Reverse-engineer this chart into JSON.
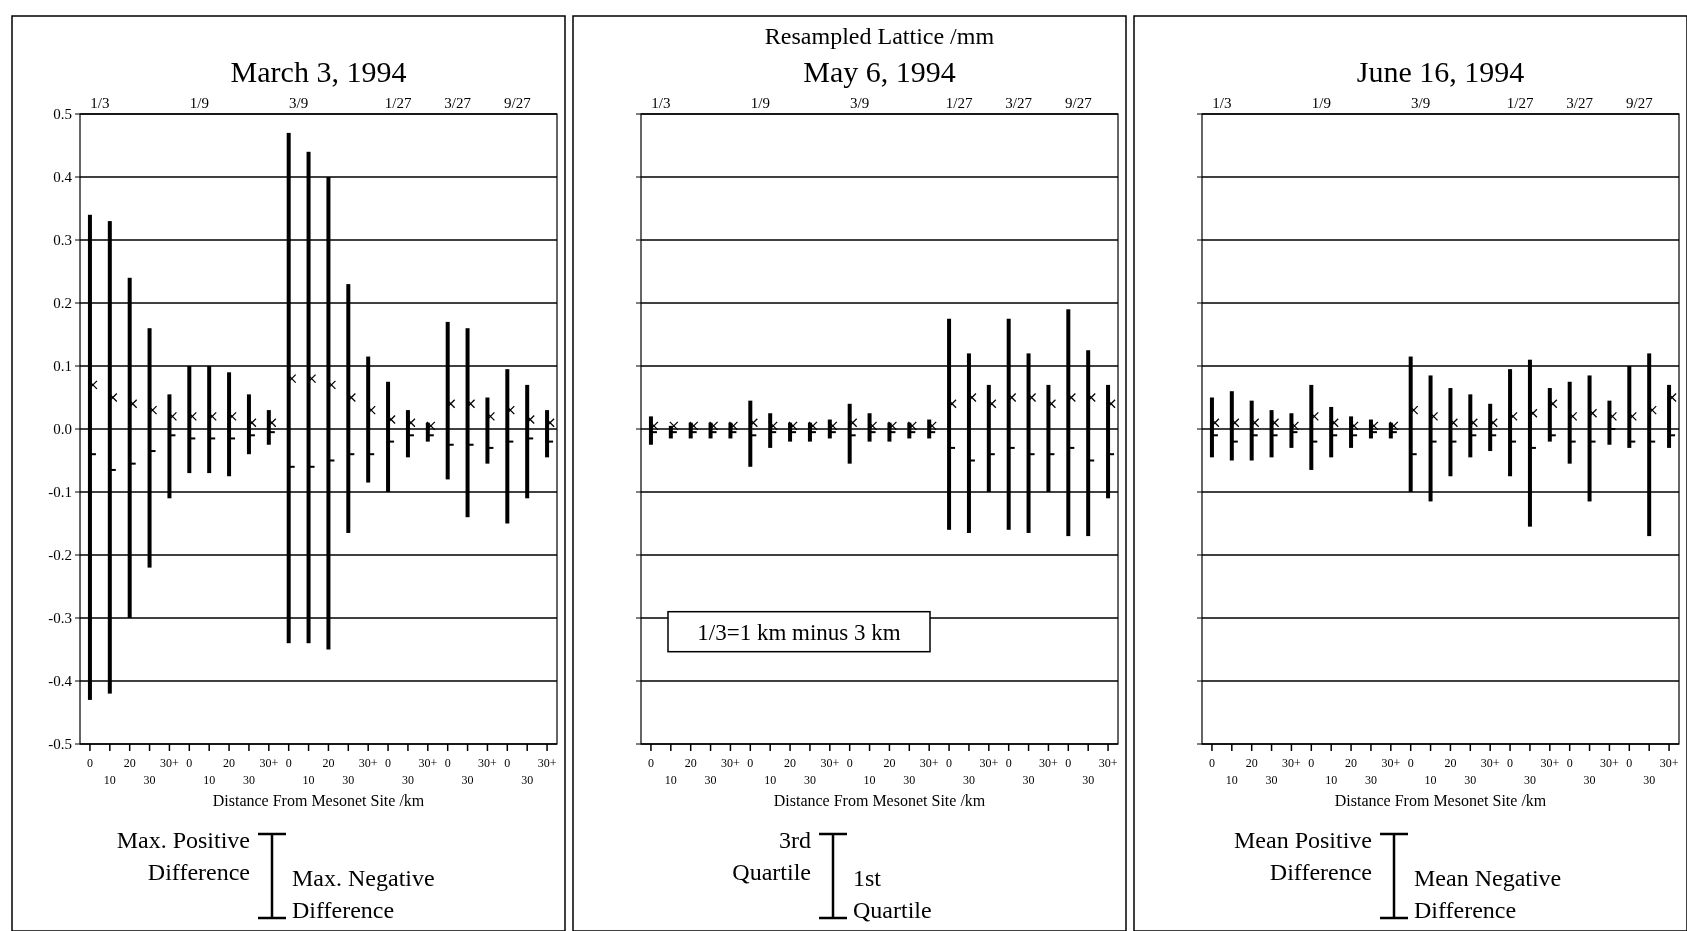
{
  "chart_data": [
    {
      "type": "bar",
      "title": "March 3, 1994",
      "xlabel": "Distance From Mesonet Site /km",
      "categories": [
        "0",
        "10",
        "20",
        "30",
        "30+",
        "0",
        "10",
        "20",
        "30",
        "30+",
        "0",
        "10",
        "20",
        "30",
        "30+",
        "0",
        "30",
        "30+",
        "0",
        "30",
        "30+",
        "0",
        "30",
        "30+"
      ],
      "ylim": [
        -0.5,
        0.5
      ],
      "yticks": [
        -0.5,
        -0.4,
        -0.3,
        -0.2,
        -0.1,
        {
          "value": 0,
          "label": "0.0"
        },
        0.1,
        0.2,
        0.3,
        0.4,
        0.5
      ],
      "grid": "y",
      "annotations": [
        "1/3",
        "1/9",
        "3/9",
        "1/27",
        "3/27",
        "9/27",
        "Max. Positive Difference",
        "Max. Negative Difference"
      ],
      "series": [
        {
          "color": "#000000",
          "base": [
            -0.43,
            -0.42,
            -0.3,
            -0.22,
            -0.11,
            -0.07,
            -0.07,
            -0.075,
            -0.04,
            -0.025,
            -0.34,
            -0.34,
            -0.35,
            -0.165,
            -0.085,
            -0.1,
            -0.045,
            -0.02,
            -0.08,
            -0.14,
            -0.055,
            -0.15,
            -0.11,
            -0.045
          ],
          "values": [
            0.77,
            0.75,
            0.54,
            0.38,
            0.165,
            0.17,
            0.17,
            0.165,
            0.095,
            0.055,
            0.81,
            0.78,
            0.75,
            0.395,
            0.2,
            0.175,
            0.075,
            0.03,
            0.25,
            0.3,
            0.105,
            0.245,
            0.18,
            0.075
          ]
        },
        {
          "type": "scatter",
          "marker": "cross",
          "color": "#000000",
          "values": [
            0.07,
            0.05,
            0.04,
            0.03,
            0.02,
            0.02,
            0.02,
            0.02,
            0.01,
            0.01,
            0.08,
            0.08,
            0.07,
            0.05,
            0.03,
            0.015,
            0.01,
            0.005,
            0.04,
            0.04,
            0.02,
            0.03,
            0.015,
            0.01
          ]
        },
        {
          "type": "scatter",
          "marker": "square",
          "color": "#000000",
          "values": [
            -0.04,
            -0.065,
            -0.055,
            -0.035,
            -0.01,
            -0.015,
            -0.015,
            -0.015,
            -0.01,
            -0.005,
            -0.06,
            -0.06,
            -0.05,
            -0.04,
            -0.04,
            -0.02,
            -0.01,
            -0.01,
            -0.025,
            -0.025,
            -0.03,
            -0.02,
            -0.015,
            -0.02
          ]
        }
      ]
    },
    {
      "type": "bar",
      "title": "Resampled Lattice /mm",
      "subtitle": "May 6, 1994",
      "xlabel": "Distance From Mesonet Site /km",
      "categories": [
        "0",
        "10",
        "20",
        "30",
        "30+",
        "0",
        "10",
        "20",
        "30",
        "30+",
        "0",
        "10",
        "20",
        "30",
        "30+",
        "0",
        "30",
        "30+",
        "0",
        "30",
        "30+",
        "0",
        "30",
        "30+"
      ],
      "ylim": [
        -0.5,
        0.5
      ],
      "yticks": [
        -0.5,
        -0.4,
        -0.3,
        -0.2,
        -0.1,
        0,
        0.1,
        0.2,
        0.3,
        0.4,
        0.5
      ],
      "tick_labels": "x",
      "grid": "y",
      "annotations": [
        "1/3",
        "1/9",
        "3/9",
        "1/27",
        "3/27",
        "9/27",
        "1/3=1 km minus 3 km",
        "3rd Quartile",
        "1st Quartile"
      ],
      "series": [
        {
          "color": "#000000",
          "base": [
            -0.025,
            -0.015,
            -0.015,
            -0.015,
            -0.015,
            -0.06,
            -0.03,
            -0.02,
            -0.02,
            -0.015,
            -0.055,
            -0.02,
            -0.02,
            -0.015,
            -0.015,
            -0.16,
            -0.165,
            -0.1,
            -0.16,
            -0.165,
            -0.1,
            -0.17,
            -0.17,
            -0.11
          ],
          "values": [
            0.045,
            0.02,
            0.025,
            0.025,
            0.025,
            0.105,
            0.055,
            0.03,
            0.03,
            0.03,
            0.095,
            0.045,
            0.03,
            0.025,
            0.03,
            0.335,
            0.285,
            0.17,
            0.335,
            0.285,
            0.17,
            0.36,
            0.295,
            0.18
          ]
        },
        {
          "type": "scatter",
          "marker": "cross",
          "color": "#000000",
          "values": [
            0.005,
            0.005,
            0.005,
            0.005,
            0.005,
            0.01,
            0.005,
            0.005,
            0.005,
            0.005,
            0.01,
            0.005,
            0.005,
            0.005,
            0.005,
            0.04,
            0.05,
            0.04,
            0.05,
            0.05,
            0.04,
            0.05,
            0.05,
            0.04
          ]
        },
        {
          "type": "scatter",
          "marker": "square",
          "color": "#000000",
          "values": [
            -0.005,
            -0.005,
            -0.005,
            -0.005,
            -0.005,
            -0.01,
            -0.005,
            -0.005,
            -0.005,
            -0.005,
            -0.01,
            -0.005,
            -0.005,
            -0.005,
            -0.005,
            -0.03,
            -0.05,
            -0.04,
            -0.03,
            -0.04,
            -0.04,
            -0.03,
            -0.05,
            -0.04
          ]
        }
      ]
    },
    {
      "type": "bar",
      "title": "June 16, 1994",
      "xlabel": "Distance From Mesonet Site /km",
      "categories": [
        "0",
        "10",
        "20",
        "30",
        "30+",
        "0",
        "10",
        "20",
        "30",
        "30+",
        "0",
        "10",
        "20",
        "30",
        "30+",
        "0",
        "30",
        "30+",
        "0",
        "30",
        "30+",
        "0",
        "30",
        "30+"
      ],
      "ylim": [
        -0.5,
        0.5
      ],
      "yticks": [
        -0.5,
        -0.4,
        -0.3,
        -0.2,
        -0.1,
        0,
        0.1,
        0.2,
        0.3,
        0.4,
        0.5
      ],
      "tick_labels": "x",
      "grid": "y",
      "annotations": [
        "1/3",
        "1/9",
        "3/9",
        "1/27",
        "3/27",
        "9/27",
        "Mean Positive Difference",
        "Mean Negative Difference"
      ],
      "series": [
        {
          "color": "#000000",
          "base": [
            -0.045,
            -0.05,
            -0.05,
            -0.045,
            -0.03,
            -0.065,
            -0.045,
            -0.03,
            -0.015,
            -0.015,
            -0.1,
            -0.115,
            -0.075,
            -0.045,
            -0.035,
            -0.075,
            -0.155,
            -0.02,
            -0.055,
            -0.115,
            -0.025,
            -0.03,
            -0.17,
            -0.03
          ],
          "values": [
            0.095,
            0.11,
            0.095,
            0.075,
            0.055,
            0.135,
            0.08,
            0.05,
            0.03,
            0.025,
            0.215,
            0.2,
            0.14,
            0.1,
            0.075,
            0.17,
            0.265,
            0.085,
            0.13,
            0.2,
            0.07,
            0.13,
            0.29,
            0.1
          ]
        },
        {
          "type": "scatter",
          "marker": "cross",
          "color": "#000000",
          "values": [
            0.01,
            0.01,
            0.01,
            0.01,
            0.005,
            0.02,
            0.01,
            0.005,
            0.005,
            0.005,
            0.03,
            0.02,
            0.01,
            0.01,
            0.01,
            0.02,
            0.025,
            0.04,
            0.02,
            0.025,
            0.02,
            0.02,
            0.03,
            0.05
          ]
        },
        {
          "type": "scatter",
          "marker": "square",
          "color": "#000000",
          "values": [
            -0.01,
            -0.02,
            -0.01,
            -0.01,
            -0.005,
            -0.02,
            -0.01,
            -0.01,
            -0.005,
            -0.005,
            -0.04,
            -0.02,
            -0.02,
            -0.01,
            -0.01,
            -0.02,
            -0.03,
            -0.01,
            -0.02,
            -0.02,
            0,
            -0.02,
            -0.02,
            -0.01
          ]
        }
      ]
    }
  ]
}
